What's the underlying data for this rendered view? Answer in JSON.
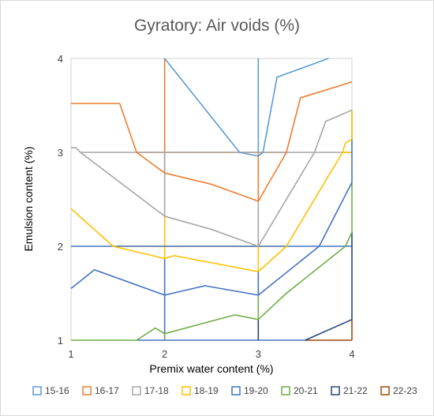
{
  "chart_data": {
    "type": "line",
    "title": "Gyratory: Air voids (%)",
    "xlabel": "Premix water content (%)",
    "ylabel": "Emulsion content (%)",
    "xlim": [
      1,
      4
    ],
    "ylim": [
      1,
      4
    ],
    "xticks": [
      "1",
      "2",
      "3",
      "4"
    ],
    "yticks": [
      "1",
      "2",
      "3",
      "4"
    ],
    "grid": false,
    "legend_position": "bottom",
    "series": [
      {
        "name": "15-16",
        "color": "#5B9BD5",
        "points": [
          [
            2.0,
            4.0
          ],
          [
            2.8,
            3.0
          ],
          [
            3.0,
            2.96
          ],
          [
            3.05,
            3.0
          ],
          [
            3.2,
            3.8
          ],
          [
            3.75,
            4.0
          ]
        ]
      },
      {
        "name": "16-17",
        "color": "#ED7D31",
        "points": [
          [
            1.0,
            3.52
          ],
          [
            1.52,
            3.52
          ],
          [
            1.7,
            3.0
          ],
          [
            2.0,
            2.78
          ],
          [
            2.5,
            2.66
          ],
          [
            3.0,
            2.48
          ],
          [
            3.3,
            3.0
          ],
          [
            3.45,
            3.58
          ],
          [
            4.0,
            3.75
          ]
        ]
      },
      {
        "name": "17-18",
        "color": "#A5A5A5",
        "points": [
          [
            1.0,
            3.05
          ],
          [
            1.05,
            3.05
          ],
          [
            1.1,
            3.0
          ],
          [
            2.0,
            2.32
          ],
          [
            2.5,
            2.18
          ],
          [
            3.0,
            2.0
          ],
          [
            3.6,
            3.0
          ],
          [
            3.72,
            3.33
          ],
          [
            4.0,
            3.45
          ]
        ]
      },
      {
        "name": "18-19",
        "color": "#FFC000",
        "points": [
          [
            1.0,
            2.4
          ],
          [
            1.45,
            2.0
          ],
          [
            2.0,
            1.87
          ],
          [
            2.1,
            1.9
          ],
          [
            3.0,
            1.73
          ],
          [
            3.3,
            2.0
          ],
          [
            3.9,
            3.0
          ],
          [
            3.93,
            3.1
          ],
          [
            4.0,
            3.14
          ]
        ]
      },
      {
        "name": "19-20",
        "color": "#4472C4",
        "points": [
          [
            1.0,
            1.55
          ],
          [
            1.25,
            1.75
          ],
          [
            2.0,
            1.48
          ],
          [
            2.43,
            1.58
          ],
          [
            3.0,
            1.48
          ],
          [
            3.65,
            2.0
          ],
          [
            4.0,
            2.68
          ]
        ]
      },
      {
        "name": "20-21",
        "color": "#70AD47",
        "points": [
          [
            1.0,
            1.0
          ],
          [
            1.7,
            1.0
          ],
          [
            1.9,
            1.13
          ],
          [
            2.0,
            1.07
          ],
          [
            2.75,
            1.27
          ],
          [
            3.0,
            1.22
          ],
          [
            3.3,
            1.5
          ],
          [
            3.93,
            2.0
          ],
          [
            4.0,
            2.15
          ]
        ]
      },
      {
        "name": "21-22",
        "color": "#264478",
        "points": [
          [
            3.5,
            1.0
          ],
          [
            4.0,
            1.22
          ]
        ]
      },
      {
        "name": "22-23",
        "color": "#9E480E",
        "points": []
      }
    ],
    "frame_lines": {
      "color_map": {
        "15-16": "#5B9BD5",
        "16-17": "#ED7D31",
        "17-18": "#A5A5A5",
        "18-19": "#FFC000",
        "19-20": "#4472C4",
        "20-21": "#70AD47",
        "21-22": "#264478",
        "22-23": "#9E480E"
      },
      "segments": [
        {
          "series": "15-16",
          "points": [
            [
              3.0,
              2.96
            ],
            [
              3.0,
              4.0
            ]
          ]
        },
        {
          "series": "16-17",
          "points": [
            [
              2.0,
              4.0
            ],
            [
              2.0,
              2.78
            ]
          ]
        },
        {
          "series": "16-17",
          "points": [
            [
              1.7,
              3.0
            ],
            [
              3.3,
              3.0
            ]
          ]
        },
        {
          "series": "16-17",
          "points": [
            [
              3.0,
              3.0
            ],
            [
              3.0,
              2.48
            ]
          ]
        },
        {
          "series": "17-18",
          "points": [
            [
              1.1,
              3.0
            ],
            [
              4.0,
              3.0
            ]
          ]
        },
        {
          "series": "17-18",
          "points": [
            [
              2.0,
              3.0
            ],
            [
              2.0,
              2.32
            ]
          ]
        },
        {
          "series": "17-18",
          "points": [
            [
              3.0,
              2.48
            ],
            [
              3.0,
              2.0
            ]
          ]
        },
        {
          "series": "17-18",
          "points": [
            [
              4.0,
              3.45
            ],
            [
              4.0,
              3.14
            ]
          ]
        },
        {
          "series": "18-19",
          "points": [
            [
              1.45,
              2.0
            ],
            [
              3.3,
              2.0
            ]
          ]
        },
        {
          "series": "18-19",
          "points": [
            [
              2.0,
              2.32
            ],
            [
              2.0,
              1.87
            ]
          ]
        },
        {
          "series": "18-19",
          "points": [
            [
              3.0,
              2.0
            ],
            [
              3.0,
              1.73
            ]
          ]
        },
        {
          "series": "18-19",
          "points": [
            [
              3.9,
              3.0
            ],
            [
              4.0,
              3.0
            ]
          ]
        },
        {
          "series": "18-19",
          "points": [
            [
              4.0,
              3.45
            ],
            [
              4.0,
              3.14
            ]
          ]
        },
        {
          "series": "19-20",
          "points": [
            [
              1.0,
              2.0
            ],
            [
              4.0,
              2.0
            ]
          ]
        },
        {
          "series": "19-20",
          "points": [
            [
              2.0,
              1.87
            ],
            [
              2.0,
              1.48
            ]
          ]
        },
        {
          "series": "19-20",
          "points": [
            [
              3.0,
              1.73
            ],
            [
              3.0,
              1.48
            ]
          ]
        },
        {
          "series": "19-20",
          "points": [
            [
              4.0,
              3.14
            ],
            [
              4.0,
              2.68
            ]
          ]
        },
        {
          "series": "19-20",
          "points": [
            [
              2.0,
              1.48
            ],
            [
              2.0,
              1.0
            ]
          ]
        },
        {
          "series": "20-21",
          "points": [
            [
              4.0,
              2.68
            ],
            [
              4.0,
              2.15
            ]
          ]
        },
        {
          "series": "20-21",
          "points": [
            [
              3.0,
              1.48
            ],
            [
              3.0,
              1.22
            ]
          ]
        },
        {
          "series": "20-21",
          "points": [
            [
              2.0,
              1.07
            ],
            [
              2.0,
              1.0
            ]
          ]
        },
        {
          "series": "19-20",
          "points": [
            [
              1.7,
              1.0
            ],
            [
              3.5,
              1.0
            ]
          ]
        },
        {
          "series": "21-22",
          "points": [
            [
              4.0,
              2.15
            ],
            [
              4.0,
              1.22
            ]
          ]
        },
        {
          "series": "21-22",
          "points": [
            [
              3.0,
              1.22
            ],
            [
              3.0,
              1.0
            ]
          ]
        },
        {
          "series": "22-23",
          "points": [
            [
              3.5,
              1.0
            ],
            [
              4.0,
              1.0
            ]
          ]
        },
        {
          "series": "22-23",
          "points": [
            [
              4.0,
              1.22
            ],
            [
              4.0,
              1.0
            ]
          ]
        }
      ]
    }
  }
}
